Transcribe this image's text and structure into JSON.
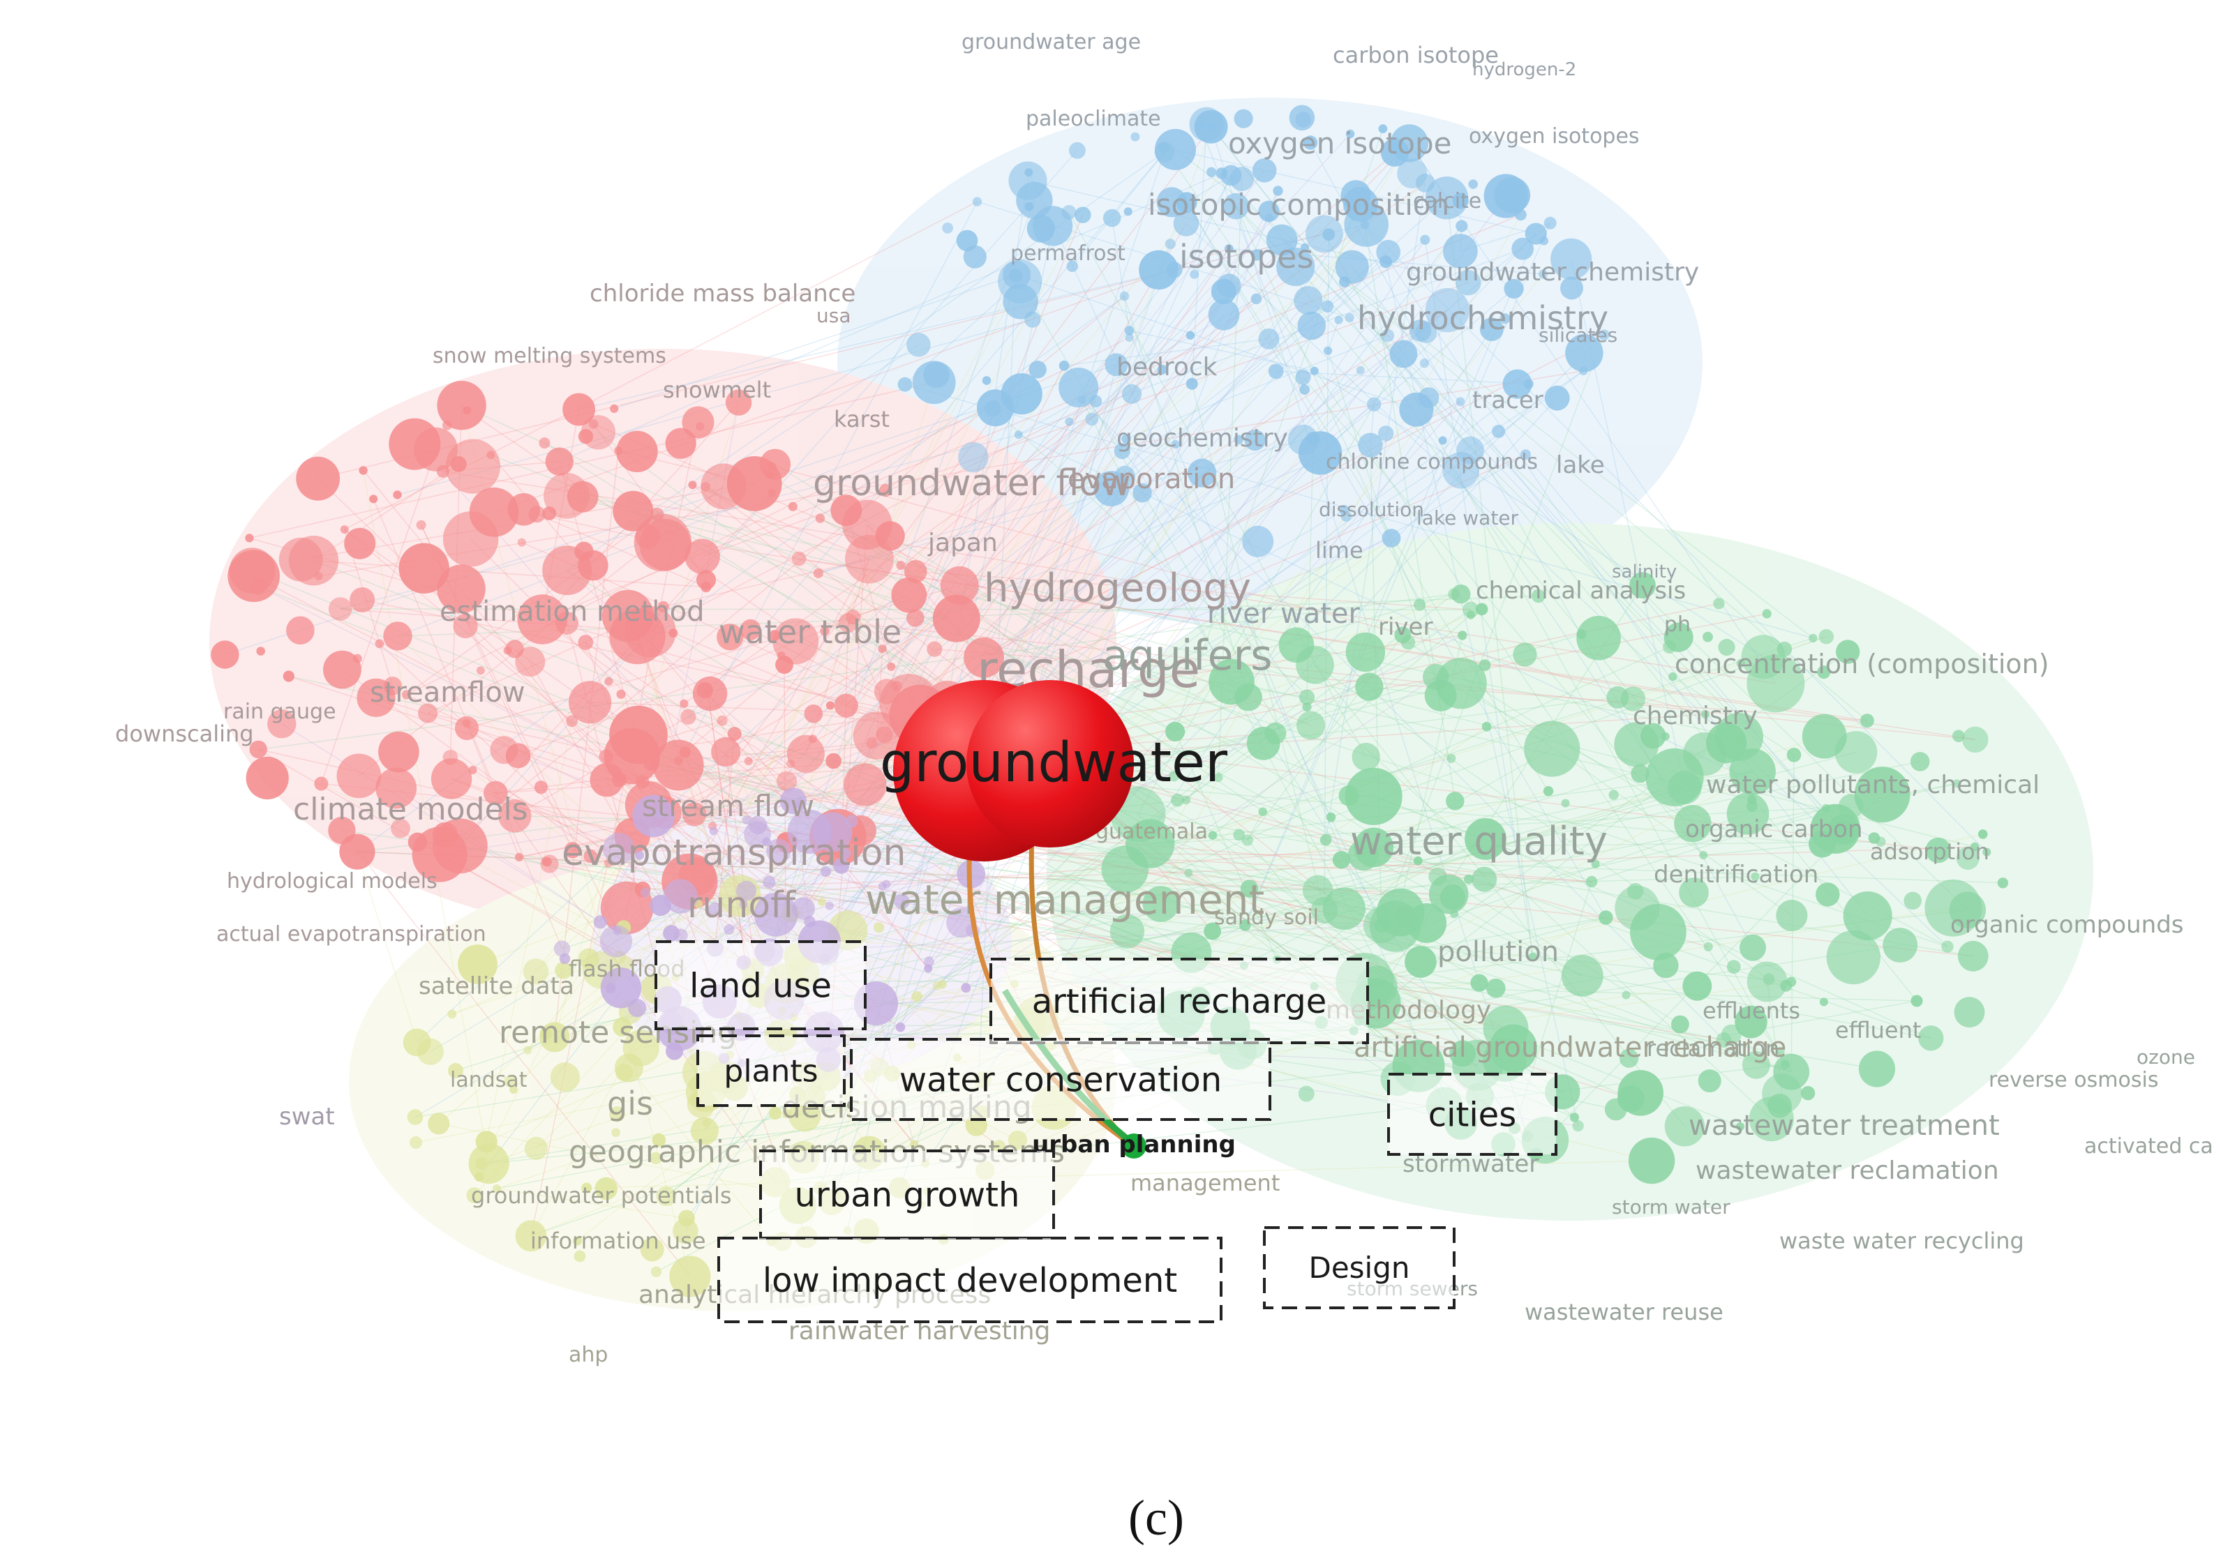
{
  "figure": {
    "panel_label": "(c)",
    "central_term": "groundwater",
    "highlighted_term": "urban planning",
    "boxed_terms": [
      "land use",
      "artificial recharge",
      "plants",
      "water conservation",
      "cities",
      "urban growth",
      "low impact development",
      "Design"
    ],
    "colors": {
      "red_cluster": "#f48c8e",
      "blue_cluster": "#8fc3e8",
      "green_cluster": "#89d4a2",
      "yellow_cluster": "#dde39a",
      "purple_cluster": "#c4aee0",
      "central_node": "#e8121a",
      "highlight_node": "#19a83a",
      "link_orange": "#d98a3c",
      "link_green": "#2aa845"
    },
    "clusters": {
      "blue": [
        "groundwater age",
        "carbon isotope",
        "hydrogen-2",
        "paleoclimate",
        "oxygen isotope",
        "oxygen isotopes",
        "isotopic composition",
        "calcite",
        "permafrost",
        "isotopes",
        "groundwater chemistry",
        "hydrochemistry",
        "silicates",
        "bedrock",
        "tracer",
        "geochemistry",
        "chlorine compounds",
        "lake",
        "dissolution",
        "lake water",
        "lime",
        "river water",
        "salinity",
        "redox reactions"
      ],
      "red": [
        "chloride mass balance",
        "usa",
        "snow melting systems",
        "snowmelt",
        "karst",
        "groundwater flow",
        "evaporation",
        "japan",
        "estimation method",
        "hydrogeology",
        "water table",
        "recharge",
        "streamflow",
        "rain gauge",
        "downscaling",
        "climate models",
        "stream flow",
        "evapotranspiration",
        "hydrological models",
        "runoff",
        "actual evapotranspiration"
      ],
      "green": [
        "chemical analysis",
        "river",
        "ph",
        "aquifers",
        "concentration (composition)",
        "chemistry",
        "water pollutants, chemical",
        "organic carbon",
        "water quality",
        "adsorption",
        "denitrification",
        "organic compounds",
        "pollution",
        "effluents",
        "effluent",
        "reclamation",
        "ozone",
        "reverse osmosis",
        "wastewater treatment",
        "stormwater",
        "wastewater reclamation",
        "activated carbon",
        "storm water",
        "waste water recycling",
        "storm sewers",
        "wastewater reuse"
      ],
      "yellow": [
        "water management",
        "sandy soil",
        "satellite data",
        "flash flood",
        "remote sensing",
        "landsat",
        "gis",
        "decision making",
        "geographic information systems",
        "groundwater potentials",
        "management",
        "information use",
        "analytical hierarchy process",
        "rainwater harvesting",
        "ahp",
        "methodology",
        "artificial groundwater recharge",
        "guatemala"
      ],
      "purple": [
        "swat"
      ]
    }
  }
}
